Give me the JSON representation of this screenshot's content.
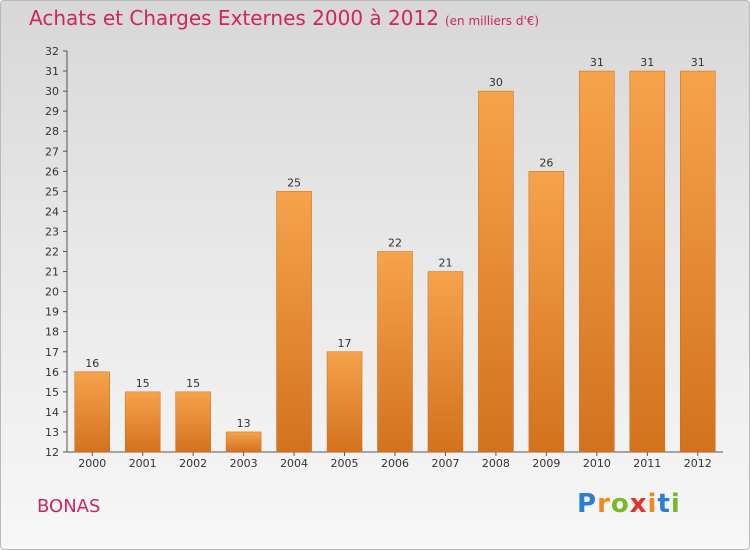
{
  "header": {
    "title": "Achats et Charges Externes 2000 à 2012",
    "unit": "(en milliers d'€)"
  },
  "footer": {
    "town": "BONAS",
    "logo": [
      "P",
      "r",
      "o",
      "x",
      "i",
      "t",
      "i"
    ]
  },
  "colors": {
    "title": "#d1235f",
    "bar_light": "#f6a34c",
    "bar_dark": "#d3721d",
    "logo": [
      "#2a7fd4",
      "#f08a1c",
      "#7ab829",
      "#e2322b",
      "#f08a1c",
      "#2a7fd4",
      "#7ab829"
    ]
  },
  "chart_data": {
    "type": "bar",
    "categories": [
      "2000",
      "2001",
      "2002",
      "2003",
      "2004",
      "2005",
      "2006",
      "2007",
      "2008",
      "2009",
      "2010",
      "2011",
      "2012"
    ],
    "values": [
      16,
      15,
      15,
      13,
      25,
      17,
      22,
      21,
      30,
      26,
      31,
      31,
      31
    ],
    "ylim": [
      12,
      32
    ],
    "yticks": [
      12,
      13,
      14,
      15,
      16,
      17,
      18,
      19,
      20,
      21,
      22,
      23,
      24,
      25,
      26,
      27,
      28,
      29,
      30,
      31,
      32
    ],
    "data_labels": true,
    "grid": false
  }
}
